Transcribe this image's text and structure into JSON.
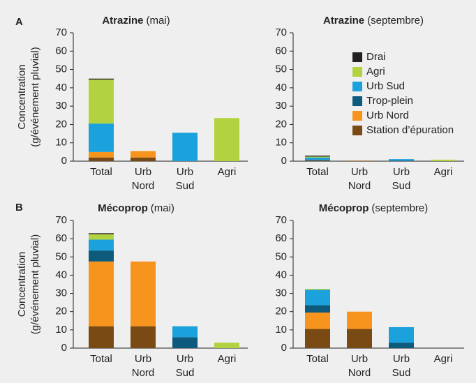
{
  "chart_data": [
    {
      "type": "bar",
      "stacked": true,
      "panel_label": "A",
      "title": "Atrazine",
      "subtitle": "(mai)",
      "ylabel": [
        "Concentration",
        "(g/événement pluvial)"
      ],
      "categories": [
        "Total",
        "Urb Nord",
        "Urb Sud",
        "Agri"
      ],
      "series": [
        {
          "name": "Station d’épuration",
          "color": "#7a4a14",
          "values": [
            2,
            2,
            0,
            0
          ]
        },
        {
          "name": "Urb Nord",
          "color": "#f7941d",
          "values": [
            3,
            3.5,
            0,
            0
          ]
        },
        {
          "name": "Trop-plein",
          "color": "#0d5a7c",
          "values": [
            0,
            0,
            0,
            0
          ]
        },
        {
          "name": "Urb Sud",
          "color": "#1ba1dc",
          "values": [
            15.5,
            0,
            15.5,
            0
          ]
        },
        {
          "name": "Agri",
          "color": "#b2d33f",
          "values": [
            24,
            0,
            0,
            23.5
          ]
        },
        {
          "name": "Drai",
          "color": "#231f20",
          "values": [
            0.5,
            0,
            0,
            0
          ]
        }
      ],
      "ylim": [
        0,
        70
      ],
      "yticks": [
        0,
        10,
        20,
        30,
        40,
        50,
        60,
        70
      ]
    },
    {
      "type": "bar",
      "stacked": true,
      "title": "Atrazine",
      "subtitle": "(septembre)",
      "categories": [
        "Total",
        "Urb Nord",
        "Urb Sud",
        "Agri"
      ],
      "series": [
        {
          "name": "Station d’épuration",
          "color": "#7a4a14",
          "values": [
            0.2,
            0.2,
            0,
            0
          ]
        },
        {
          "name": "Urb Nord",
          "color": "#f7941d",
          "values": [
            0.1,
            0.1,
            0,
            0
          ]
        },
        {
          "name": "Trop-plein",
          "color": "#0d5a7c",
          "values": [
            0.5,
            0,
            0.3,
            0
          ]
        },
        {
          "name": "Urb Sud",
          "color": "#1ba1dc",
          "values": [
            1.2,
            0,
            0.8,
            0
          ]
        },
        {
          "name": "Agri",
          "color": "#b2d33f",
          "values": [
            0.5,
            0,
            0,
            0.8
          ]
        },
        {
          "name": "Drai",
          "color": "#231f20",
          "values": [
            0.5,
            0,
            0,
            0
          ]
        }
      ],
      "ylim": [
        0,
        70
      ],
      "yticks": [
        0,
        10,
        20,
        30,
        40,
        50,
        60,
        70
      ],
      "legend": "upper right"
    },
    {
      "type": "bar",
      "stacked": true,
      "panel_label": "B",
      "title": "Mécoprop",
      "subtitle": "(mai)",
      "ylabel": [
        "Concentration",
        "(g/événement pluvial)"
      ],
      "categories": [
        "Total",
        "Urb Nord",
        "Urb Sud",
        "Agri"
      ],
      "series": [
        {
          "name": "Station d’épuration",
          "color": "#7a4a14",
          "values": [
            12,
            12,
            0,
            0
          ]
        },
        {
          "name": "Urb Nord",
          "color": "#f7941d",
          "values": [
            35.5,
            35.5,
            0,
            0
          ]
        },
        {
          "name": "Trop-plein",
          "color": "#0d5a7c",
          "values": [
            6,
            0,
            6,
            0
          ]
        },
        {
          "name": "Urb Sud",
          "color": "#1ba1dc",
          "values": [
            6,
            0,
            6,
            0
          ]
        },
        {
          "name": "Agri",
          "color": "#b2d33f",
          "values": [
            3,
            0,
            0,
            3
          ]
        },
        {
          "name": "Drai",
          "color": "#231f20",
          "values": [
            0.5,
            0,
            0,
            0
          ]
        }
      ],
      "ylim": [
        0,
        70
      ],
      "yticks": [
        0,
        10,
        20,
        30,
        40,
        50,
        60,
        70
      ]
    },
    {
      "type": "bar",
      "stacked": true,
      "title": "Mécoprop",
      "subtitle": "(septembre)",
      "categories": [
        "Total",
        "Urb Nord",
        "Urb Sud",
        "Agri"
      ],
      "series": [
        {
          "name": "Station d’épuration",
          "color": "#7a4a14",
          "values": [
            10.5,
            10.5,
            0,
            0
          ]
        },
        {
          "name": "Urb Nord",
          "color": "#f7941d",
          "values": [
            9,
            9.5,
            0,
            0
          ]
        },
        {
          "name": "Trop-plein",
          "color": "#0d5a7c",
          "values": [
            4,
            0,
            3,
            0
          ]
        },
        {
          "name": "Urb Sud",
          "color": "#1ba1dc",
          "values": [
            8.5,
            0,
            8.5,
            0
          ]
        },
        {
          "name": "Agri",
          "color": "#b2d33f",
          "values": [
            0.5,
            0,
            0,
            0
          ]
        },
        {
          "name": "Drai",
          "color": "#231f20",
          "values": [
            0,
            0,
            0,
            0
          ]
        }
      ],
      "ylim": [
        0,
        70
      ],
      "yticks": [
        0,
        10,
        20,
        30,
        40,
        50,
        60,
        70
      ]
    }
  ]
}
